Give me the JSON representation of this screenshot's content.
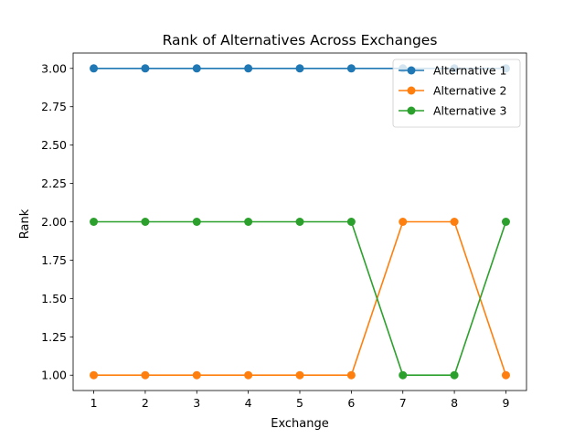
{
  "chart_data": {
    "type": "line",
    "title": "Rank of Alternatives Across Exchanges",
    "xlabel": "Exchange",
    "ylabel": "Rank",
    "x": [
      1,
      2,
      3,
      4,
      5,
      6,
      7,
      8,
      9
    ],
    "xlim": [
      0.6,
      9.4
    ],
    "ylim": [
      0.9,
      3.1
    ],
    "xticks": [
      1,
      2,
      3,
      4,
      5,
      6,
      7,
      8,
      9
    ],
    "xtick_labels": [
      "1",
      "2",
      "3",
      "4",
      "5",
      "6",
      "7",
      "8",
      "9"
    ],
    "yticks": [
      1.0,
      1.25,
      1.5,
      1.75,
      2.0,
      2.25,
      2.5,
      2.75,
      3.0
    ],
    "ytick_labels": [
      "1.00",
      "1.25",
      "1.50",
      "1.75",
      "2.00",
      "2.25",
      "2.50",
      "2.75",
      "3.00"
    ],
    "grid": false,
    "legend_position": "top-right",
    "series": [
      {
        "name": "Alternative 1",
        "color": "#1f77b4",
        "values": [
          3,
          3,
          3,
          3,
          3,
          3,
          3,
          3,
          3
        ]
      },
      {
        "name": "Alternative 2",
        "color": "#ff7f0e",
        "values": [
          1,
          1,
          1,
          1,
          1,
          1,
          2,
          2,
          1
        ]
      },
      {
        "name": "Alternative 3",
        "color": "#2ca02c",
        "values": [
          2,
          2,
          2,
          2,
          2,
          2,
          1,
          1,
          2
        ]
      }
    ]
  }
}
